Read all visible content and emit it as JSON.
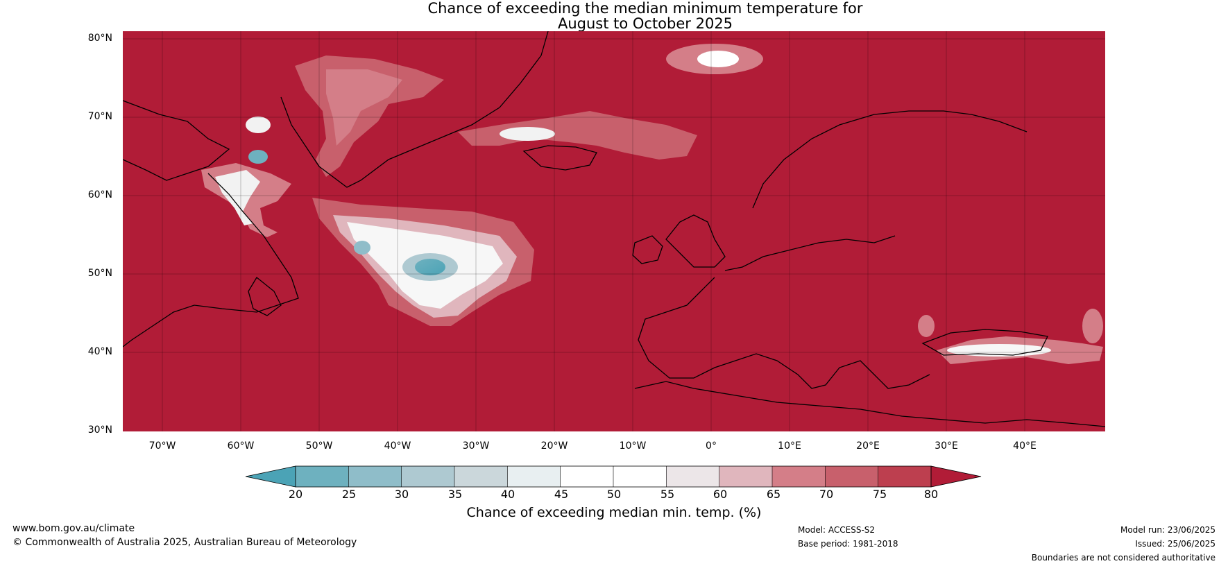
{
  "title": {
    "line1": "Chance of exceeding the median minimum temperature for",
    "line2": "August to October 2025"
  },
  "map": {
    "extent": {
      "lon": [
        -75,
        50
      ],
      "lat": [
        30,
        81
      ]
    },
    "background_color": "#b11c37",
    "lat_labels": [
      "80°N",
      "70°N",
      "60°N",
      "50°N",
      "40°N",
      "30°N"
    ],
    "lon_labels": [
      "70°W",
      "60°W",
      "50°W",
      "40°W",
      "30°W",
      "20°W",
      "10°W",
      "0°",
      "10°E",
      "20°E",
      "30°E",
      "40°E"
    ]
  },
  "colorbar": {
    "ticks": [
      "20",
      "25",
      "30",
      "35",
      "40",
      "45",
      "50",
      "55",
      "60",
      "65",
      "70",
      "75",
      "80"
    ],
    "colors": [
      "#4ba3b6",
      "#6eb1bf",
      "#8fbdc9",
      "#aec9d1",
      "#cbd7db",
      "#e8eff1",
      "#ffffff",
      "#ffffff",
      "#ece6e8",
      "#e0b6bd",
      "#d47e88",
      "#c8606c",
      "#bd3f4f",
      "#b11c37"
    ],
    "label": "Chance of exceeding median min. temp. (%)"
  },
  "footer": {
    "website": "www.bom.gov.au/climate",
    "copyright": "© Commonwealth of Australia 2025, Australian Bureau of Meteorology",
    "model": "Model: ACCESS-S2",
    "base_period": "Base period: 1981-2018",
    "model_run": "Model run: 23/06/2025",
    "issued": "Issued: 25/06/2025",
    "disclaimer": "Boundaries are not considered authoritative"
  }
}
